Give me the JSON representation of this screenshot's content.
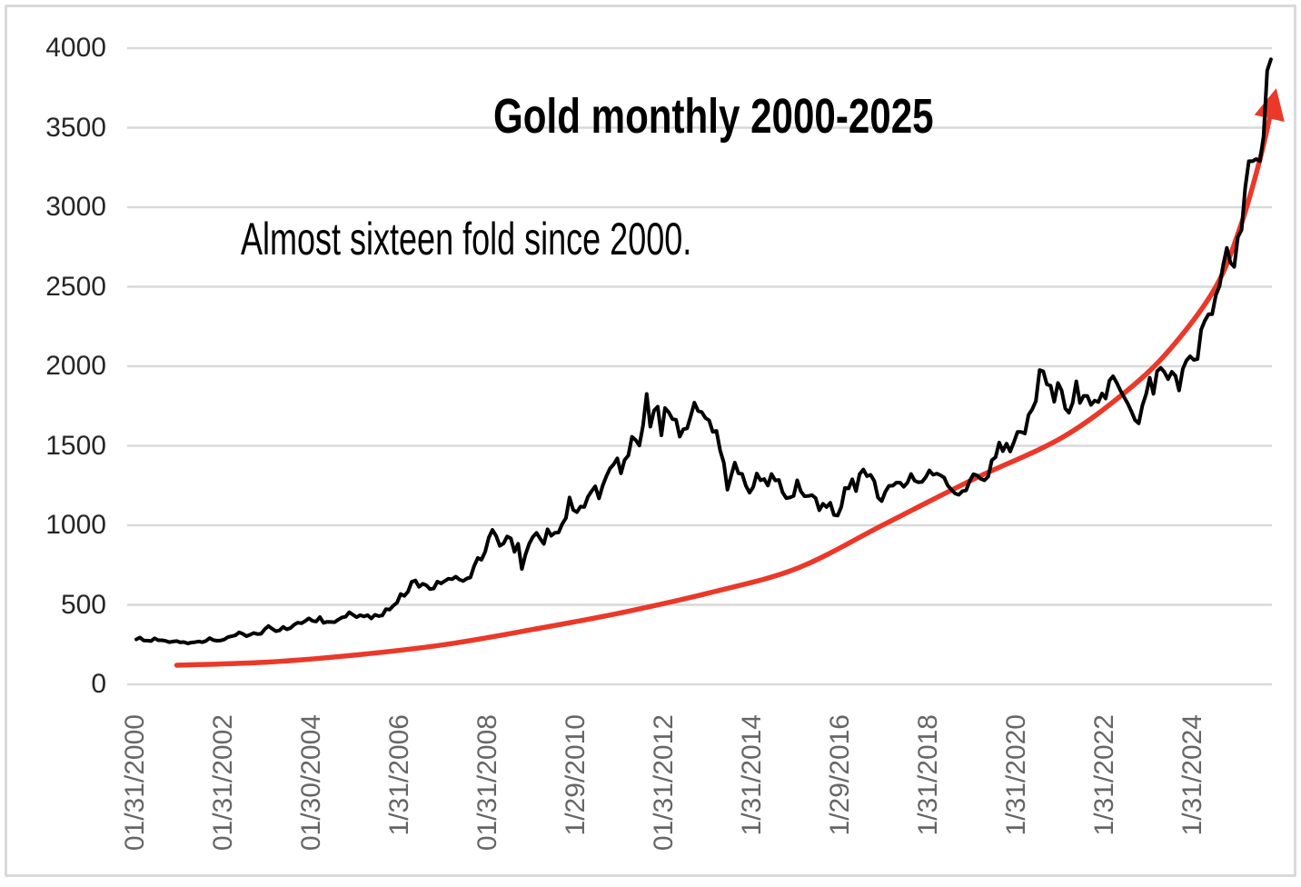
{
  "page": {
    "background": "#ffffff",
    "border_color": "#d9d9d9"
  },
  "chart_data": {
    "type": "line",
    "title": "Gold monthly 2000-2025",
    "annotation": "Almost sixteen fold since 2000.",
    "frequency": "monthly",
    "x_start": "01/2000",
    "x_end": "10/2025",
    "ylim": [
      0,
      4000
    ],
    "grid": "horizontal",
    "legend": "none",
    "colors": {
      "gold_line": "#000000",
      "trend_arrow": "#ea3829",
      "gridline": "#d9d9d9",
      "y_tick_text": "#262626",
      "x_tick_text": "#666666"
    },
    "y_ticks": [
      0,
      500,
      1000,
      1500,
      2000,
      2500,
      3000,
      3500,
      4000
    ],
    "x_ticks": [
      {
        "label": "01/31/2000",
        "month": 0
      },
      {
        "label": "01/31/2002",
        "month": 24
      },
      {
        "label": "01/30/2004",
        "month": 48
      },
      {
        "label": "1/31/2006",
        "month": 72
      },
      {
        "label": "01/31/2008",
        "month": 96
      },
      {
        "label": "1/29/2010",
        "month": 120
      },
      {
        "label": "01/31/2012",
        "month": 144
      },
      {
        "label": "1/31/2014",
        "month": 168
      },
      {
        "label": "1/29/2016",
        "month": 192
      },
      {
        "label": "1/31/2018",
        "month": 216
      },
      {
        "label": "1/31/2020",
        "month": 240
      },
      {
        "label": "1/31/2022",
        "month": 264
      },
      {
        "label": "1/31/2024",
        "month": 288
      }
    ],
    "series": [
      {
        "name": "Gold monthly close (USD per oz)",
        "type": "line",
        "color": "#000000",
        "start_month": 0,
        "values": [
          283,
          294,
          276,
          275,
          272,
          289,
          277,
          277,
          273,
          265,
          269,
          272,
          264,
          266,
          257,
          263,
          265,
          270,
          265,
          273,
          291,
          278,
          274,
          276,
          282,
          297,
          302,
          308,
          327,
          318,
          303,
          312,
          323,
          316,
          318,
          347,
          367,
          350,
          334,
          339,
          361,
          346,
          354,
          375,
          388,
          384,
          398,
          415,
          399,
          395,
          423,
          387,
          393,
          392,
          391,
          407,
          420,
          425,
          453,
          438,
          422,
          435,
          427,
          435,
          414,
          437,
          429,
          433,
          473,
          470,
          495,
          513,
          568,
          556,
          582,
          644,
          653,
          613,
          632,
          623,
          599,
          603,
          646,
          635,
          650,
          664,
          661,
          677,
          659,
          650,
          665,
          672,
          743,
          795,
          783,
          833,
          923,
          971,
          933,
          871,
          885,
          930,
          918,
          833,
          884,
          725,
          816,
          884,
          927,
          952,
          916,
          883,
          975,
          934,
          953,
          955,
          1008,
          1045,
          1175,
          1096,
          1083,
          1118,
          1115,
          1179,
          1215,
          1245,
          1169,
          1248,
          1307,
          1357,
          1383,
          1421,
          1327,
          1411,
          1439,
          1556,
          1536,
          1502,
          1628,
          1826,
          1620,
          1722,
          1746,
          1566,
          1737,
          1711,
          1668,
          1664,
          1558,
          1604,
          1610,
          1687,
          1771,
          1719,
          1712,
          1675,
          1660,
          1588,
          1594,
          1472,
          1393,
          1224,
          1312,
          1394,
          1327,
          1323,
          1250,
          1205,
          1240,
          1326,
          1283,
          1291,
          1250,
          1322,
          1282,
          1285,
          1208,
          1171,
          1175,
          1184,
          1283,
          1213,
          1183,
          1184,
          1190,
          1172,
          1095,
          1135,
          1115,
          1141,
          1065,
          1061,
          1116,
          1234,
          1232,
          1290,
          1215,
          1322,
          1351,
          1309,
          1317,
          1277,
          1174,
          1152,
          1211,
          1248,
          1249,
          1268,
          1268,
          1242,
          1268,
          1322,
          1280,
          1271,
          1273,
          1303,
          1345,
          1318,
          1325,
          1315,
          1300,
          1250,
          1224,
          1200,
          1192,
          1215,
          1220,
          1281,
          1321,
          1313,
          1292,
          1283,
          1306,
          1410,
          1428,
          1520,
          1466,
          1513,
          1464,
          1523,
          1587,
          1587,
          1577,
          1694,
          1730,
          1781,
          1976,
          1968,
          1886,
          1878,
          1777,
          1895,
          1848,
          1734,
          1708,
          1768,
          1905,
          1770,
          1814,
          1814,
          1757,
          1784,
          1775,
          1829,
          1797,
          1909,
          1937,
          1897,
          1848,
          1807,
          1766,
          1716,
          1662,
          1641,
          1753,
          1824,
          1928,
          1827,
          1969,
          1990,
          1963,
          1919,
          1965,
          1940,
          1848,
          1983,
          2036,
          2063,
          2040,
          2045,
          2230,
          2286,
          2327,
          2327,
          2448,
          2503,
          2635,
          2744,
          2651,
          2625,
          2812,
          2858,
          3123,
          3289,
          3289,
          3303,
          3290,
          3446,
          3859,
          3930
        ]
      },
      {
        "name": "Exponential growth trend (red arrow)",
        "type": "smooth-curve-arrow",
        "color": "#ea3829",
        "points": [
          [
            11,
            120
          ],
          [
            36,
            140
          ],
          [
            60,
            185
          ],
          [
            84,
            250
          ],
          [
            108,
            345
          ],
          [
            132,
            450
          ],
          [
            156,
            575
          ],
          [
            180,
            730
          ],
          [
            204,
            1010
          ],
          [
            228,
            1290
          ],
          [
            252,
            1550
          ],
          [
            270,
            1850
          ],
          [
            282,
            2120
          ],
          [
            294,
            2500
          ],
          [
            301,
            2900
          ],
          [
            306,
            3300
          ],
          [
            309,
            3600
          ]
        ]
      }
    ]
  }
}
